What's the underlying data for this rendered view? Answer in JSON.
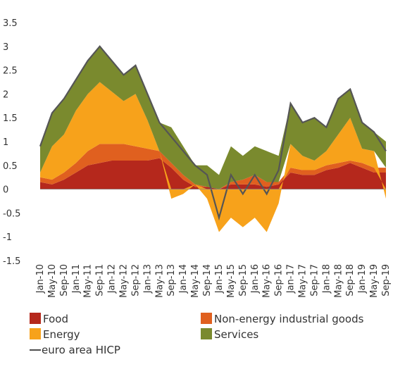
{
  "chart_data": {
    "type": "stacked_area",
    "categories": [
      "Jan-10",
      "May-10",
      "Sep-10",
      "Jan-11",
      "May-11",
      "Sep-11",
      "Jan-12",
      "May-12",
      "Sep-12",
      "Jan-13",
      "May-13",
      "Sep-13",
      "Jan-14",
      "May-14",
      "Sep-14",
      "Jan-15",
      "May-15",
      "Sep-15",
      "Jan-16",
      "May-16",
      "Sep-16",
      "Jan-17",
      "May-17",
      "Sep-17",
      "Jan-18",
      "May-18",
      "Sep-18",
      "Jan-19",
      "May-19",
      "Sep-19"
    ],
    "series": [
      {
        "name": "Food",
        "color": "#b5281c",
        "values": [
          0.15,
          0.1,
          0.2,
          0.35,
          0.5,
          0.55,
          0.6,
          0.6,
          0.6,
          0.6,
          0.65,
          0.45,
          0.2,
          0.05,
          0.05,
          0.0,
          0.1,
          0.1,
          0.1,
          0.05,
          0.1,
          0.35,
          0.3,
          0.3,
          0.4,
          0.45,
          0.55,
          0.45,
          0.35,
          0.35
        ]
      },
      {
        "name": "Non-energy industrial goods",
        "color": "#e0601f",
        "values": [
          0.1,
          0.1,
          0.15,
          0.2,
          0.3,
          0.4,
          0.35,
          0.35,
          0.3,
          0.25,
          0.15,
          0.1,
          0.1,
          0.05,
          0.0,
          0.0,
          0.05,
          0.1,
          0.2,
          0.1,
          0.05,
          0.1,
          0.1,
          0.1,
          0.1,
          0.1,
          0.05,
          0.1,
          0.1,
          0.1
        ]
      },
      {
        "name": "Energy",
        "color": "#f7a21b",
        "values": [
          0.1,
          0.7,
          0.8,
          1.1,
          1.2,
          1.3,
          1.1,
          0.9,
          1.1,
          0.6,
          0.0,
          -0.2,
          -0.1,
          0.0,
          -0.2,
          -0.9,
          -0.6,
          -0.8,
          -0.6,
          -0.9,
          -0.3,
          0.5,
          0.3,
          0.2,
          0.3,
          0.6,
          0.9,
          0.3,
          0.35,
          -0.2
        ]
      },
      {
        "name": "Services",
        "color": "#7a8a2e",
        "values": [
          0.55,
          0.7,
          0.75,
          0.65,
          0.7,
          0.75,
          0.65,
          0.55,
          0.6,
          0.55,
          0.6,
          0.75,
          0.6,
          0.4,
          0.45,
          0.3,
          0.75,
          0.5,
          0.6,
          0.65,
          0.55,
          0.85,
          0.7,
          0.9,
          0.5,
          0.75,
          0.6,
          0.55,
          0.4,
          0.55
        ]
      }
    ],
    "line": {
      "name": "euro area HICP",
      "color": "#555555",
      "values": [
        0.9,
        1.6,
        1.9,
        2.3,
        2.7,
        3.0,
        2.7,
        2.4,
        2.6,
        2.0,
        1.4,
        1.1,
        0.8,
        0.5,
        0.3,
        -0.6,
        0.3,
        -0.1,
        0.3,
        -0.1,
        0.4,
        1.8,
        1.4,
        1.5,
        1.3,
        1.9,
        2.1,
        1.4,
        1.2,
        0.8
      ]
    },
    "ylim": [
      -1.5,
      3.5
    ],
    "yticks": [
      -1.5,
      -1,
      -0.5,
      0,
      0.5,
      1,
      1.5,
      2,
      2.5,
      3,
      3.5
    ]
  }
}
